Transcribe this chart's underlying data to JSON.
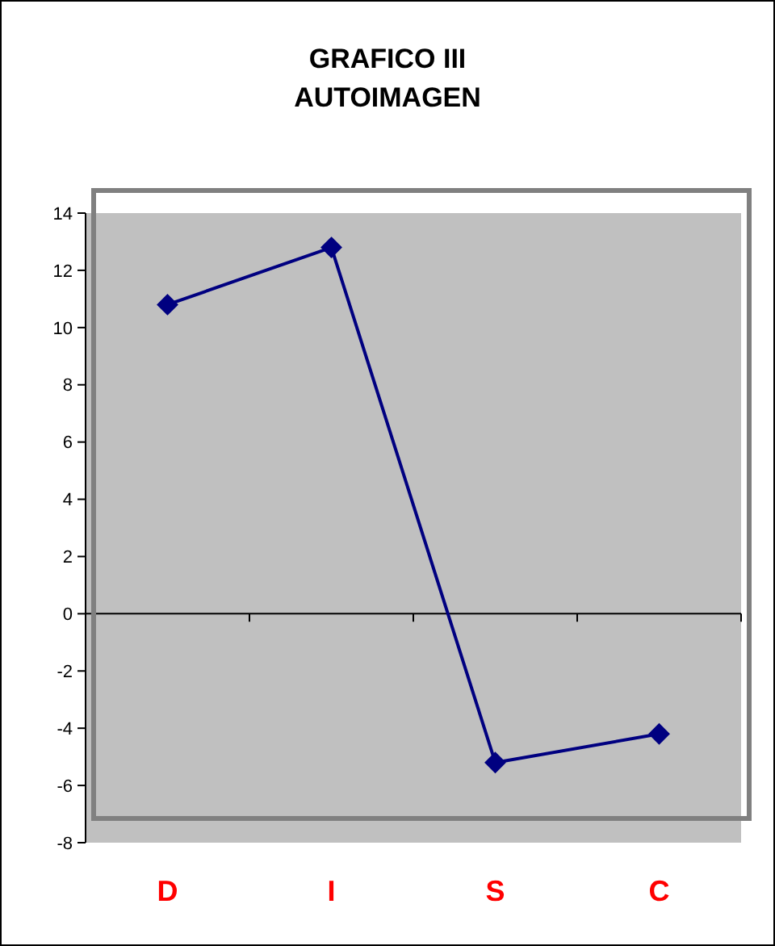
{
  "chart_data": {
    "type": "line",
    "title": "GRAFICO III\nAUTOIMAGEN",
    "categories": [
      "D",
      "I",
      "S",
      "C"
    ],
    "series": [
      {
        "color": "#000080",
        "values": [
          10.8,
          12.8,
          -5.2,
          -4.2
        ]
      }
    ],
    "ylim": [
      -8,
      14
    ],
    "yticks": [
      -8,
      -6,
      -4,
      -2,
      0,
      2,
      4,
      6,
      8,
      10,
      12,
      14
    ],
    "marker": "diamond"
  }
}
